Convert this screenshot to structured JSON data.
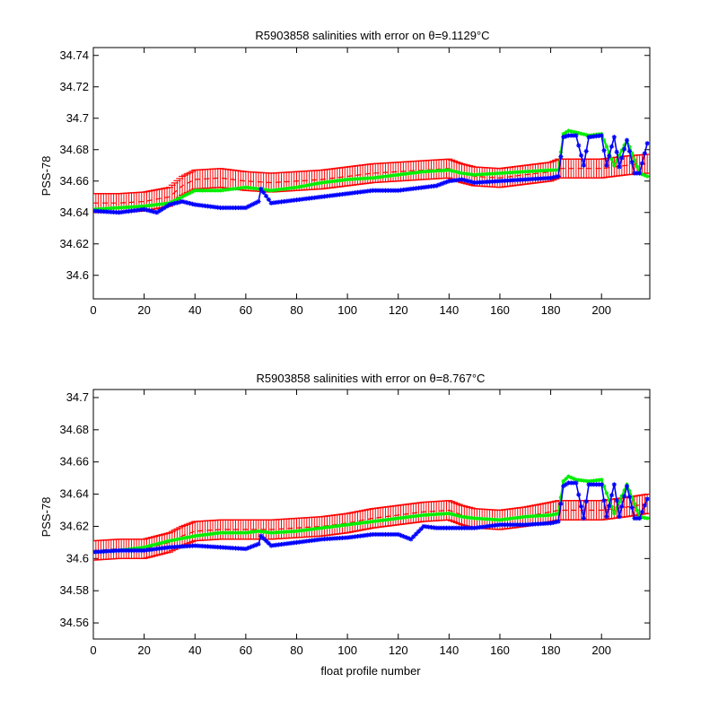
{
  "chart_data": [
    {
      "type": "line",
      "title": "R5903858 salinities with error on θ=9.1129°C",
      "xlabel": "",
      "ylabel": "PSS-78",
      "xlim": [
        0,
        219
      ],
      "ylim": [
        34.585,
        34.745
      ],
      "xticks": [
        0,
        20,
        40,
        60,
        80,
        100,
        120,
        140,
        160,
        180,
        200
      ],
      "yticks": [
        34.6,
        34.62,
        34.64,
        34.66,
        34.68,
        34.7,
        34.72,
        34.74
      ],
      "ytick_labels": [
        "34.6",
        "34.62",
        "34.64",
        "34.66",
        "34.68",
        "34.7",
        "34.72",
        "34.74"
      ],
      "grid": false,
      "series": [
        {
          "role": "mapped_with_error",
          "color": "#ff0000",
          "style": "dashed-with-errorbars",
          "errorbar": 0.006,
          "x": [
            0,
            10,
            20,
            30,
            35,
            40,
            50,
            60,
            70,
            80,
            90,
            100,
            110,
            120,
            130,
            140,
            145,
            150,
            160,
            170,
            180,
            183,
            190,
            200,
            210,
            218
          ],
          "y": [
            34.646,
            34.646,
            34.647,
            34.65,
            34.657,
            34.661,
            34.662,
            34.66,
            34.659,
            34.66,
            34.661,
            34.663,
            34.665,
            34.666,
            34.667,
            34.668,
            34.665,
            34.663,
            34.662,
            34.664,
            34.666,
            34.668,
            34.668,
            34.668,
            34.67,
            34.671
          ]
        },
        {
          "role": "calibrated",
          "color": "#00ee00",
          "style": "line-with-markers",
          "x": [
            0,
            10,
            20,
            30,
            35,
            40,
            50,
            60,
            65,
            70,
            80,
            90,
            100,
            110,
            120,
            130,
            140,
            145,
            150,
            160,
            170,
            180,
            183,
            185,
            187,
            190,
            195,
            200,
            205,
            210,
            215,
            218
          ],
          "y": [
            34.642,
            34.643,
            34.644,
            34.646,
            34.65,
            34.654,
            34.654,
            34.656,
            34.655,
            34.654,
            34.656,
            34.659,
            34.661,
            34.662,
            34.664,
            34.666,
            34.667,
            34.665,
            34.664,
            34.665,
            34.666,
            34.667,
            34.667,
            34.69,
            34.692,
            34.691,
            34.689,
            34.69,
            34.67,
            34.686,
            34.665,
            34.663
          ]
        },
        {
          "role": "uncalibrated",
          "color": "#0000ff",
          "style": "line-with-star-markers",
          "x": [
            0,
            10,
            20,
            25,
            30,
            35,
            40,
            50,
            60,
            65,
            66,
            70,
            80,
            90,
            100,
            110,
            120,
            125,
            130,
            135,
            140,
            145,
            150,
            160,
            170,
            180,
            183,
            185,
            187,
            190,
            193,
            195,
            200,
            202,
            205,
            207,
            210,
            213,
            215,
            218
          ],
          "y": [
            34.641,
            34.64,
            34.642,
            34.64,
            34.645,
            34.647,
            34.645,
            34.643,
            34.643,
            34.647,
            34.655,
            34.646,
            34.648,
            34.65,
            34.652,
            34.654,
            34.654,
            34.655,
            34.656,
            34.657,
            34.66,
            34.661,
            34.659,
            34.66,
            34.661,
            34.662,
            34.663,
            34.688,
            34.689,
            34.689,
            34.67,
            34.688,
            34.689,
            34.67,
            34.688,
            34.669,
            34.686,
            34.665,
            34.665,
            34.684
          ]
        }
      ]
    },
    {
      "type": "line",
      "title": "R5903858 salinities with error on θ=8.767°C",
      "xlabel": "float profile number",
      "ylabel": "PSS-78",
      "xlim": [
        0,
        219
      ],
      "ylim": [
        34.55,
        34.705
      ],
      "xticks": [
        0,
        20,
        40,
        60,
        80,
        100,
        120,
        140,
        160,
        180,
        200
      ],
      "yticks": [
        34.56,
        34.58,
        34.6,
        34.62,
        34.64,
        34.66,
        34.68,
        34.7
      ],
      "ytick_labels": [
        "34.56",
        "34.58",
        "34.6",
        "34.62",
        "34.64",
        "34.66",
        "34.68",
        "34.7"
      ],
      "grid": false,
      "series": [
        {
          "role": "mapped_with_error",
          "color": "#ff0000",
          "style": "dashed-with-errorbars",
          "errorbar": 0.006,
          "x": [
            0,
            10,
            20,
            30,
            35,
            40,
            50,
            60,
            70,
            80,
            90,
            100,
            110,
            120,
            130,
            140,
            145,
            150,
            160,
            170,
            180,
            183,
            190,
            200,
            210,
            218
          ],
          "y": [
            34.605,
            34.606,
            34.606,
            34.61,
            34.614,
            34.617,
            34.618,
            34.618,
            34.618,
            34.619,
            34.62,
            34.622,
            34.625,
            34.627,
            34.629,
            34.63,
            34.627,
            34.625,
            34.624,
            34.626,
            34.629,
            34.63,
            34.63,
            34.63,
            34.632,
            34.634
          ]
        },
        {
          "role": "calibrated",
          "color": "#00ee00",
          "style": "line-with-markers",
          "x": [
            0,
            10,
            20,
            30,
            40,
            50,
            60,
            65,
            70,
            80,
            90,
            100,
            110,
            120,
            130,
            140,
            145,
            150,
            160,
            170,
            180,
            183,
            185,
            187,
            190,
            195,
            200,
            205,
            210,
            215,
            218
          ],
          "y": [
            34.604,
            34.605,
            34.607,
            34.611,
            34.614,
            34.616,
            34.616,
            34.617,
            34.616,
            34.617,
            34.619,
            34.621,
            34.623,
            34.625,
            34.627,
            34.628,
            34.626,
            34.625,
            34.624,
            34.626,
            34.627,
            34.628,
            34.648,
            34.651,
            34.649,
            34.648,
            34.649,
            34.628,
            34.646,
            34.626,
            34.625
          ]
        },
        {
          "role": "uncalibrated",
          "color": "#0000ff",
          "style": "line-with-star-markers",
          "x": [
            0,
            10,
            20,
            30,
            40,
            50,
            60,
            65,
            66,
            70,
            80,
            90,
            100,
            110,
            120,
            125,
            130,
            135,
            140,
            150,
            160,
            170,
            180,
            183,
            185,
            187,
            190,
            193,
            195,
            200,
            202,
            205,
            207,
            210,
            213,
            215,
            218
          ],
          "y": [
            34.604,
            34.605,
            34.605,
            34.607,
            34.608,
            34.607,
            34.606,
            34.609,
            34.614,
            34.608,
            34.61,
            34.612,
            34.613,
            34.615,
            34.615,
            34.612,
            34.62,
            34.619,
            34.619,
            34.619,
            34.621,
            34.621,
            34.622,
            34.623,
            34.645,
            34.647,
            34.647,
            34.625,
            34.646,
            34.646,
            34.626,
            34.646,
            34.626,
            34.645,
            34.625,
            34.625,
            34.637
          ]
        }
      ]
    }
  ]
}
